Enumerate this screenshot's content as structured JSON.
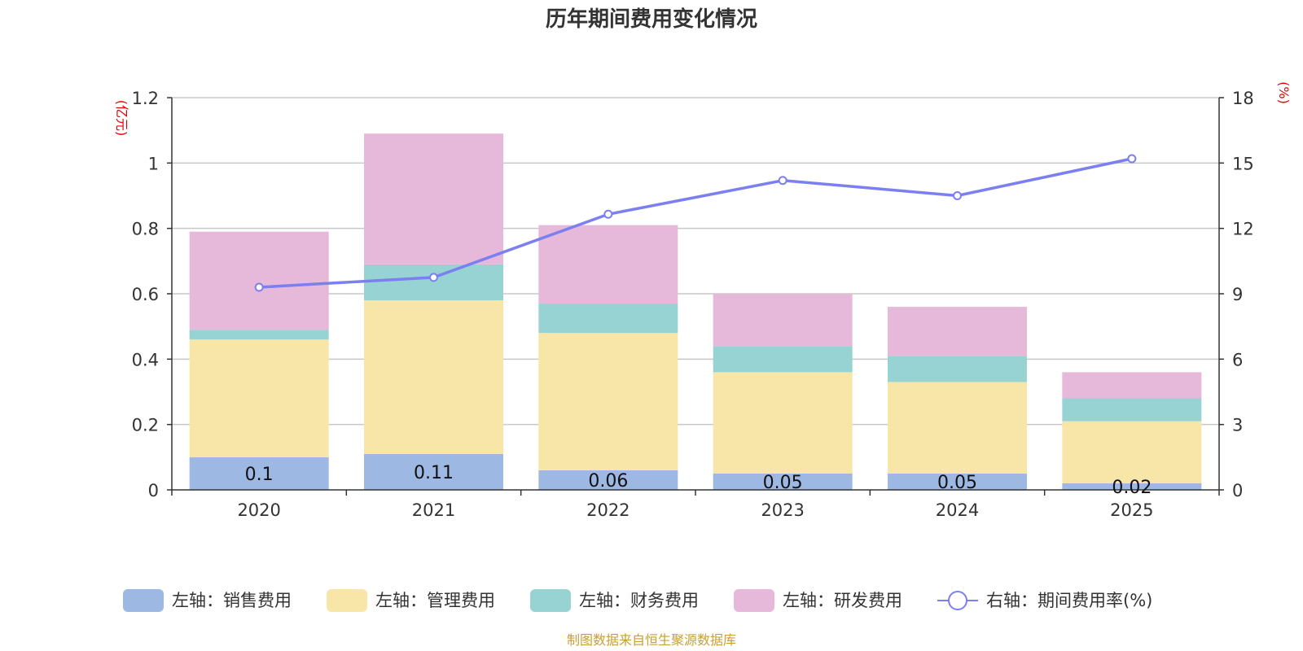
{
  "chart_data": {
    "type": "bar",
    "stacked": true,
    "title": "历年期间费用变化情况",
    "categories": [
      "2020",
      "2021",
      "2022",
      "2023",
      "2024",
      "2025"
    ],
    "series": [
      {
        "name": "左轴：销售费用",
        "axis": "left",
        "type": "bar",
        "color": "#9db8e2",
        "values": [
          0.1,
          0.11,
          0.06,
          0.05,
          0.05,
          0.02
        ],
        "labels": [
          "0.1",
          "0.11",
          "0.06",
          "0.05",
          "0.05",
          "0.02"
        ]
      },
      {
        "name": "左轴：管理费用",
        "axis": "left",
        "type": "bar",
        "color": "#f7e6a7",
        "values": [
          0.36,
          0.47,
          0.42,
          0.31,
          0.28,
          0.19
        ]
      },
      {
        "name": "左轴：财务费用",
        "axis": "left",
        "type": "bar",
        "color": "#98d3d4",
        "values": [
          0.03,
          0.11,
          0.09,
          0.08,
          0.08,
          0.07
        ]
      },
      {
        "name": "左轴：研发费用",
        "axis": "left",
        "type": "bar",
        "color": "#e6b8d9",
        "values": [
          0.3,
          0.4,
          0.24,
          0.16,
          0.15,
          0.08
        ]
      },
      {
        "name": "右轴：期间费用率(%)",
        "axis": "right",
        "type": "line",
        "color": "#7b7ff0",
        "values": [
          9.3,
          9.75,
          12.65,
          14.2,
          13.5,
          15.2
        ]
      }
    ],
    "y_left": {
      "label": "(亿元)",
      "min": 0,
      "max": 1.2,
      "ticks": [
        0,
        0.2,
        0.4,
        0.6,
        0.8,
        1,
        1.2
      ],
      "tick_labels": [
        "0",
        "0.2",
        "0.4",
        "0.6",
        "0.8",
        "1",
        "1.2"
      ]
    },
    "y_right": {
      "label": "(%)",
      "min": 0,
      "max": 18,
      "ticks": [
        0,
        3,
        6,
        9,
        12,
        15,
        18
      ],
      "tick_labels": [
        "0",
        "3",
        "6",
        "9",
        "12",
        "15",
        "18"
      ]
    },
    "grid": true,
    "legend_position": "bottom",
    "source": "制图数据来自恒生聚源数据库"
  }
}
